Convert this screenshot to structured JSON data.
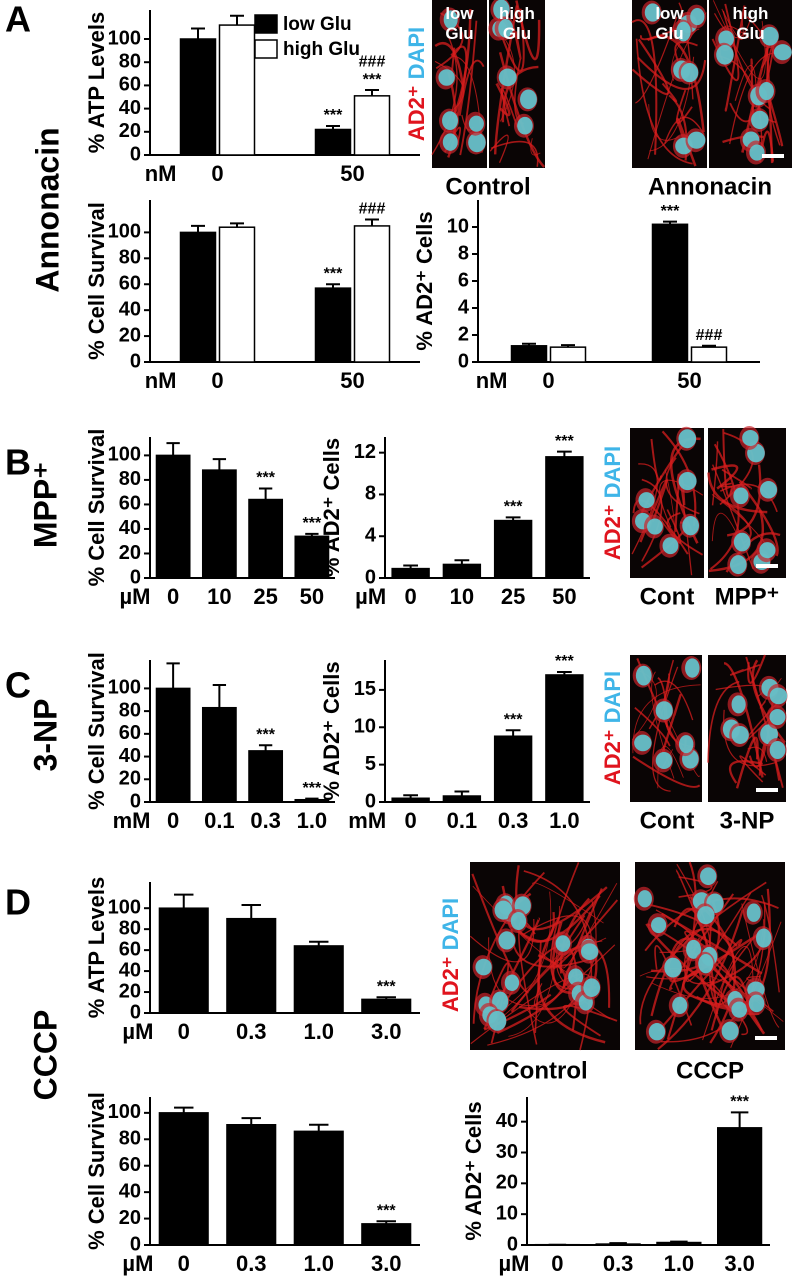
{
  "panels": [
    {
      "letter": "A",
      "group": "Annonacin"
    },
    {
      "letter": "B",
      "group": "MPP⁺"
    },
    {
      "letter": "C",
      "group": "3-NP"
    },
    {
      "letter": "D",
      "group": "CCCP"
    }
  ],
  "chart_data": [
    {
      "type": "bar",
      "ylabel": "% ATP Levels",
      "unit": "nM",
      "categories": [
        "0",
        "50"
      ],
      "series": [
        {
          "name": "low Glu",
          "color": "#000000",
          "values": [
            100,
            22
          ],
          "errors": [
            9,
            3
          ],
          "annotations": [
            null,
            "***"
          ]
        },
        {
          "name": "high Glu",
          "color": "#ffffff",
          "values": [
            112,
            51
          ],
          "errors": [
            8,
            5
          ],
          "annotations": [
            null,
            "***"
          ],
          "annotations2": [
            null,
            "###"
          ]
        }
      ],
      "ylim": [
        0,
        125
      ],
      "yticks": [
        0,
        20,
        40,
        60,
        80,
        100
      ],
      "legend": "upper right"
    },
    {
      "type": "bar",
      "ylabel": "% Cell Survival",
      "unit": "nM",
      "categories": [
        "0",
        "50"
      ],
      "series": [
        {
          "color": "#000000",
          "values": [
            100,
            57
          ],
          "errors": [
            5,
            3
          ],
          "annotations": [
            null,
            "***"
          ]
        },
        {
          "color": "#ffffff",
          "values": [
            104,
            105
          ],
          "errors": [
            3,
            5
          ],
          "annotations": [
            null,
            "###"
          ]
        }
      ],
      "ylim": [
        0,
        125
      ],
      "yticks": [
        0,
        20,
        40,
        60,
        80,
        100
      ]
    },
    {
      "type": "bar",
      "ylabel": "% AD2⁺ Cells",
      "unit": "nM",
      "categories": [
        "0",
        "50"
      ],
      "series": [
        {
          "color": "#000000",
          "values": [
            1.2,
            10.2
          ],
          "errors": [
            0.15,
            0.2
          ],
          "annotations": [
            null,
            "***"
          ]
        },
        {
          "color": "#ffffff",
          "values": [
            1.1,
            1.1
          ],
          "errors": [
            0.15,
            0.1
          ],
          "annotations": [
            null,
            "###"
          ]
        }
      ],
      "ylim": [
        0,
        12
      ],
      "yticks": [
        0,
        2,
        4,
        6,
        8,
        10
      ]
    },
    {
      "type": "bar",
      "ylabel": "% Cell Survival",
      "unit": "µM",
      "categories": [
        "0",
        "10",
        "25",
        "50"
      ],
      "color": "#000000",
      "values": [
        100,
        88,
        64,
        34
      ],
      "errors": [
        10,
        9,
        9,
        2
      ],
      "annotations": [
        null,
        null,
        "***",
        "***"
      ],
      "ylim": [
        0,
        115
      ],
      "yticks": [
        0,
        20,
        40,
        60,
        80,
        100
      ]
    },
    {
      "type": "bar",
      "ylabel": "% AD2⁺ Cells",
      "unit": "µM",
      "categories": [
        "0",
        "10",
        "25",
        "50"
      ],
      "color": "#000000",
      "values": [
        0.9,
        1.3,
        5.5,
        11.6
      ],
      "errors": [
        0.3,
        0.4,
        0.3,
        0.5
      ],
      "annotations": [
        null,
        null,
        "***",
        "***"
      ],
      "ylim": [
        0,
        13.5
      ],
      "yticks": [
        0,
        4,
        8,
        12
      ]
    },
    {
      "type": "bar",
      "ylabel": "% Cell Survival",
      "unit": "mM",
      "categories": [
        "0",
        "0.1",
        "0.3",
        "1.0"
      ],
      "color": "#000000",
      "values": [
        100,
        83,
        45,
        2
      ],
      "errors": [
        22,
        20,
        5,
        1
      ],
      "annotations": [
        null,
        null,
        "***",
        "***"
      ],
      "ylim": [
        0,
        125
      ],
      "yticks": [
        0,
        20,
        40,
        60,
        80,
        100
      ]
    },
    {
      "type": "bar",
      "ylabel": "% AD2⁺ Cells",
      "unit": "mM",
      "categories": [
        "0",
        "0.1",
        "0.3",
        "1.0"
      ],
      "color": "#000000",
      "values": [
        0.5,
        0.8,
        8.8,
        17
      ],
      "errors": [
        0.4,
        0.6,
        0.8,
        0.4
      ],
      "annotations": [
        null,
        null,
        "***",
        "***"
      ],
      "ylim": [
        0,
        19
      ],
      "yticks": [
        0,
        5,
        10,
        15
      ]
    },
    {
      "type": "bar",
      "ylabel": "% ATP Levels",
      "unit": "µM",
      "categories": [
        "0",
        "0.3",
        "1.0",
        "3.0"
      ],
      "color": "#000000",
      "values": [
        100,
        90,
        64,
        13
      ],
      "errors": [
        13,
        13,
        4,
        2
      ],
      "annotations": [
        null,
        null,
        null,
        "***"
      ],
      "ylim": [
        0,
        125
      ],
      "yticks": [
        0,
        20,
        40,
        60,
        80,
        100
      ]
    },
    {
      "type": "bar",
      "ylabel": "% Cell Survival",
      "unit": "µM",
      "categories": [
        "0",
        "0.3",
        "1.0",
        "3.0"
      ],
      "color": "#000000",
      "values": [
        100,
        91,
        86,
        16
      ],
      "errors": [
        4,
        5,
        5,
        2
      ],
      "annotations": [
        null,
        null,
        null,
        "***"
      ],
      "ylim": [
        0,
        112
      ],
      "yticks": [
        0,
        20,
        40,
        60,
        80,
        100
      ]
    },
    {
      "type": "bar",
      "ylabel": "% AD2⁺ Cells",
      "unit": "µM",
      "categories": [
        "0",
        "0.3",
        "1.0",
        "3.0"
      ],
      "color": "#000000",
      "values": [
        0.1,
        0.3,
        0.8,
        38
      ],
      "errors": [
        0,
        0.3,
        0.3,
        5
      ],
      "annotations": [
        null,
        null,
        null,
        "***"
      ],
      "ylim": [
        0,
        48
      ],
      "yticks": [
        0,
        10,
        20,
        30,
        40
      ]
    }
  ],
  "images": [
    {
      "marker": "AD2⁺",
      "stain": "DAPI",
      "tile_labels": [
        "low Glu",
        "high Glu",
        "low Glu",
        "high Glu"
      ],
      "captions": [
        "Control",
        "Annonacin"
      ]
    },
    {
      "marker": "AD2⁺",
      "stain": "DAPI",
      "captions": [
        "Cont",
        "MPP⁺"
      ]
    },
    {
      "marker": "AD2⁺",
      "stain": "DAPI",
      "captions": [
        "Cont",
        "3-NP"
      ]
    },
    {
      "marker": "AD2⁺",
      "stain": "DAPI",
      "captions": [
        "Control",
        "CCCP"
      ]
    }
  ]
}
